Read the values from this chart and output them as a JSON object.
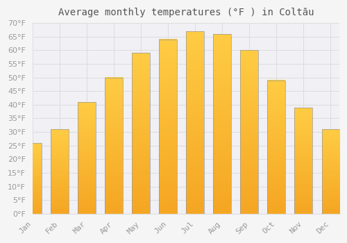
{
  "title": "Average monthly temperatures (°F ) in Coltău",
  "months": [
    "Jan",
    "Feb",
    "Mar",
    "Apr",
    "May",
    "Jun",
    "Jul",
    "Aug",
    "Sep",
    "Oct",
    "Nov",
    "Dec"
  ],
  "values": [
    26,
    31,
    41,
    50,
    59,
    64,
    67,
    66,
    60,
    49,
    39,
    31
  ],
  "bar_color_top": "#FFCC44",
  "bar_color_bottom": "#F5A623",
  "bar_edge_color": "#999999",
  "background_color": "#F5F5F5",
  "plot_bg_color": "#F0F0F5",
  "grid_color": "#DDDDDD",
  "ylim": [
    0,
    70
  ],
  "yticks": [
    0,
    5,
    10,
    15,
    20,
    25,
    30,
    35,
    40,
    45,
    50,
    55,
    60,
    65,
    70
  ],
  "title_fontsize": 10,
  "tick_fontsize": 8,
  "tick_label_color": "#999999",
  "title_color": "#555555",
  "bar_width": 0.65
}
